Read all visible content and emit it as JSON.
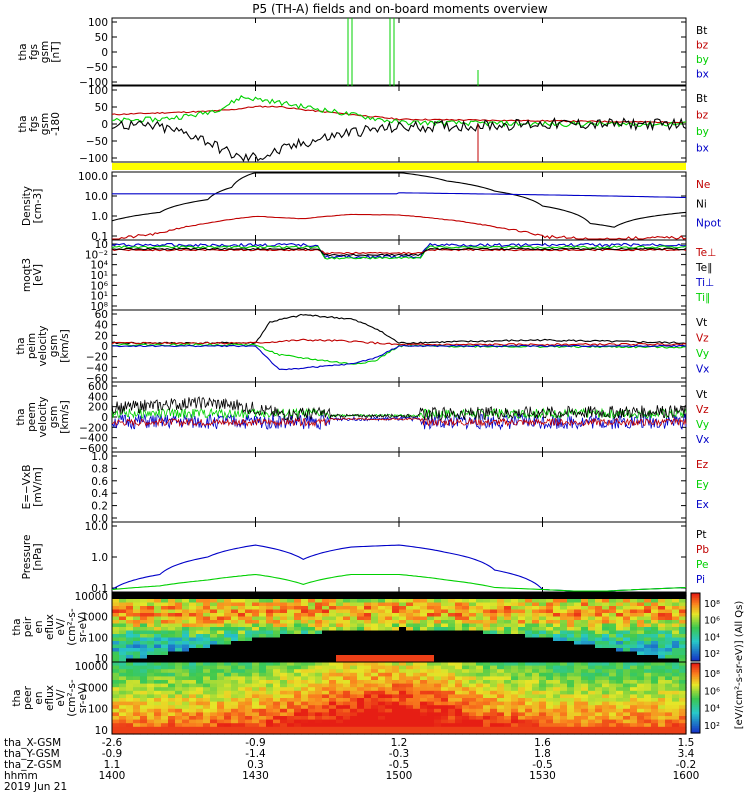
{
  "title": "P5 (TH-A) fields and on-board moments overview",
  "colors": {
    "black": "#000000",
    "red": "#c00000",
    "green": "#00d000",
    "blue": "#0000c8",
    "yellow": "#ffff00"
  },
  "chart_data": [
    {
      "type": "line",
      "ylabel": [
        "tha",
        "fgs",
        "gsm",
        "[nT]"
      ],
      "ylim": [
        -100,
        100
      ],
      "yticks": [
        "100",
        "50",
        "0",
        "−50",
        "−100"
      ],
      "legend": [
        "Bt",
        "bz",
        "by",
        "bx"
      ],
      "series": [
        {
          "name": "by",
          "note": "spikes",
          "x": [
            1424,
            1424.2,
            1424.4,
            1430,
            1430.2,
            1430.4,
            1430.6,
            1436,
            1436.2,
            1436.4,
            1436.6,
            1443,
            1443.2,
            1443.4
          ],
          "y": [
            -100,
            100,
            -100,
            -100,
            100,
            100,
            -100,
            -100,
            100,
            100,
            -100,
            -100,
            -50,
            -100
          ]
        }
      ]
    },
    {
      "type": "line",
      "ylabel": [
        "tha",
        "fgs",
        "gsm",
        "-180"
      ],
      "ylim": [
        -120,
        120
      ],
      "yticks": [
        "100",
        "50",
        "0",
        "−50",
        "−100"
      ],
      "legend": [
        "Bt",
        "bz",
        "by",
        "bx"
      ],
      "series": [
        {
          "name": "bz",
          "x": [
            1400,
            1410,
            1420,
            1425,
            1430,
            1435,
            1440,
            1450,
            1500,
            1530,
            1600
          ],
          "y": [
            30,
            35,
            40,
            45,
            55,
            55,
            45,
            30,
            15,
            10,
            5
          ]
        },
        {
          "name": "by",
          "x": [
            1400,
            1410,
            1418,
            1423,
            1427,
            1432,
            1440,
            1450,
            1500,
            1530,
            1600
          ],
          "y": [
            10,
            15,
            30,
            50,
            85,
            75,
            55,
            30,
            5,
            0,
            0
          ]
        },
        {
          "name": "bx",
          "x": [
            1400,
            1410,
            1418,
            1423,
            1427,
            1432,
            1440,
            1450,
            1500,
            1530,
            1600
          ],
          "y": [
            0,
            -10,
            -40,
            -80,
            -110,
            -100,
            -60,
            -25,
            -10,
            0,
            0
          ]
        }
      ]
    },
    {
      "type": "line",
      "ylabel": [
        "Density",
        "[cm-3]"
      ],
      "ylim_log": [
        -1,
        2.2
      ],
      "yticks": [
        "100.0",
        "10.0",
        "1.0",
        "0.1"
      ],
      "legend": [
        "Ne",
        "Ni",
        "Npot"
      ],
      "series": [
        {
          "name": "Ne",
          "x": [
            1400,
            1410,
            1420,
            1430,
            1440,
            1450,
            1500,
            1510,
            1520,
            1530,
            1540,
            1550,
            1600
          ],
          "y": [
            0.1,
            0.2,
            0.6,
            1.3,
            1.0,
            1.6,
            1.5,
            0.9,
            0.4,
            0.15,
            0.1,
            0.12,
            0.13
          ]
        },
        {
          "name": "Ni",
          "x": [
            1400,
            1410,
            1420,
            1425,
            1430,
            1500,
            1510,
            1520,
            1530,
            1540,
            1545,
            1550,
            1600
          ],
          "y": [
            0.8,
            2,
            8,
            30,
            150,
            150,
            60,
            20,
            4,
            0.6,
            0.4,
            1,
            2
          ]
        },
        {
          "name": "Npot",
          "x": [
            1400,
            1425,
            1475,
            1600
          ],
          "y": [
            15,
            15,
            15,
            10
          ]
        }
      ]
    },
    {
      "type": "line",
      "ylabel": [
        "moqt3",
        "[eV]"
      ],
      "yticks": [
        "10",
        "10⁻²",
        "10⁴",
        "10¹",
        "10⁶",
        "10¹",
        "10⁸"
      ],
      "legend": [
        "Te⊥",
        "Te∥",
        "Ti⊥",
        "Ti∥"
      ],
      "series": [
        {
          "name": "Ti∥",
          "x": [
            1400,
            1428,
            1432,
            1450,
            1455,
            1500,
            1600
          ],
          "y": [
            60,
            60,
            25,
            25,
            55,
            60,
            60
          ]
        }
      ]
    },
    {
      "type": "line",
      "ylabel": [
        "tha",
        "peim",
        "velocity",
        "gsm",
        "[km/s]"
      ],
      "ylim": [
        -60,
        60
      ],
      "yticks": [
        "60",
        "40",
        "20",
        "0",
        "−20",
        "−40",
        "−60"
      ],
      "legend": [
        "Vt",
        "Vz",
        "Vy",
        "Vx"
      ],
      "series": [
        {
          "name": "Vt",
          "x": [
            1400,
            1430,
            1433,
            1440,
            1450,
            1455,
            1500,
            1530,
            1600
          ],
          "y": [
            5,
            5,
            40,
            52,
            45,
            30,
            5,
            10,
            5
          ]
        },
        {
          "name": "Vz",
          "x": [
            1400,
            1430,
            1440,
            1450,
            1455,
            1500,
            1600
          ],
          "y": [
            5,
            5,
            10,
            8,
            5,
            2,
            3
          ]
        },
        {
          "name": "Vy",
          "x": [
            1400,
            1430,
            1435,
            1450,
            1455,
            1500,
            1600
          ],
          "y": [
            2,
            2,
            -15,
            -30,
            -25,
            0,
            -2
          ]
        },
        {
          "name": "Vx",
          "x": [
            1400,
            1430,
            1435,
            1450,
            1455,
            1500,
            1600
          ],
          "y": [
            0,
            0,
            -40,
            -30,
            -20,
            0,
            0
          ]
        }
      ]
    },
    {
      "type": "line",
      "ylabel": [
        "tha",
        "peem",
        "velocity",
        "gsm",
        "[km/s]"
      ],
      "ylim": [
        -600,
        600
      ],
      "yticks": [
        "600",
        "400",
        "200",
        "0",
        "−200",
        "−400",
        "−600"
      ],
      "legend": [
        "Vt",
        "Vz",
        "Vy",
        "Vx"
      ],
      "series": [
        {
          "name": "Vt",
          "x": [
            1400,
            1420,
            1430,
            1435,
            1500,
            1600
          ],
          "y": [
            150,
            250,
            150,
            50,
            50,
            100
          ]
        }
      ]
    },
    {
      "type": "line",
      "ylabel": [
        "E=−VxB",
        "[mV/m]"
      ],
      "ylim": [
        0,
        1
      ],
      "yticks": [
        "1.0",
        "0.8",
        "0.6",
        "0.4",
        "0.2",
        "0.0"
      ],
      "legend": [
        "Ez",
        "Ey",
        "Ex"
      ],
      "series": []
    },
    {
      "type": "line",
      "ylabel": [
        "Pressure",
        "[nPa]"
      ],
      "ylim_log": [
        -1.4,
        1.4
      ],
      "yticks": [
        "10.0",
        "1.0",
        "0.1"
      ],
      "legend": [
        "Pt",
        "Pb",
        "Pe",
        "Pi"
      ],
      "series": [
        {
          "name": "Pi",
          "x": [
            1400,
            1410,
            1420,
            1430,
            1440,
            1450,
            1500,
            1510,
            1520,
            1530,
            1540,
            1550,
            1600
          ],
          "y": [
            0.05,
            0.2,
            1,
            3,
            0.8,
            2.5,
            3,
            1.5,
            0.3,
            0.05,
            0.04,
            0.05,
            0.06
          ]
        },
        {
          "name": "Pe",
          "x": [
            1400,
            1410,
            1420,
            1430,
            1440,
            1450,
            1500,
            1510,
            1520,
            1530,
            1540,
            1550,
            1600
          ],
          "y": [
            0.05,
            0.07,
            0.12,
            0.2,
            0.08,
            0.2,
            0.2,
            0.12,
            0.06,
            0.05,
            0.04,
            0.05,
            0.06
          ]
        }
      ]
    },
    {
      "type": "heatmap",
      "ylabel": [
        "tha",
        "peir",
        "en",
        "eflux",
        "eV/",
        "(cm²-s-",
        "sr-eV)"
      ],
      "yticks": [
        "10000",
        "1000",
        "100",
        "10"
      ]
    },
    {
      "type": "heatmap",
      "ylabel": [
        "tha",
        "peer",
        "en",
        "eflux",
        "eV/",
        "(cm²-s-",
        "sr-eV)"
      ],
      "yticks": [
        "10000",
        "1000",
        "100",
        "10"
      ]
    }
  ],
  "colorbar": {
    "label": "[eV/(cm²-s-sr-eV)] (All Qs)",
    "ticks": [
      "10⁸",
      "10⁶",
      "10⁴",
      "10²"
    ]
  },
  "xaxis": {
    "rows": [
      {
        "label": "tha_X-GSM",
        "values": [
          "-2.6",
          "-0.9",
          "1.2",
          "1.6",
          "1.5"
        ]
      },
      {
        "label": "tha_Y-GSM",
        "values": [
          "-0.9",
          "-1.4",
          "-0.3",
          "1.8",
          "3.4"
        ]
      },
      {
        "label": "tha_Z-GSM",
        "values": [
          "1.1",
          "0.3",
          "-0.5",
          "-0.5",
          "-0.2"
        ]
      },
      {
        "label": "hhmm",
        "values": [
          "1400",
          "1430",
          "1500",
          "1530",
          "1600"
        ]
      }
    ],
    "date": "2019 Jun 21",
    "tick_hhmm": [
      1400,
      1430,
      1500,
      1530,
      1600
    ]
  },
  "side_panel_label": "[eV/(cm²-s-ésr-eV)] (All Qs)"
}
